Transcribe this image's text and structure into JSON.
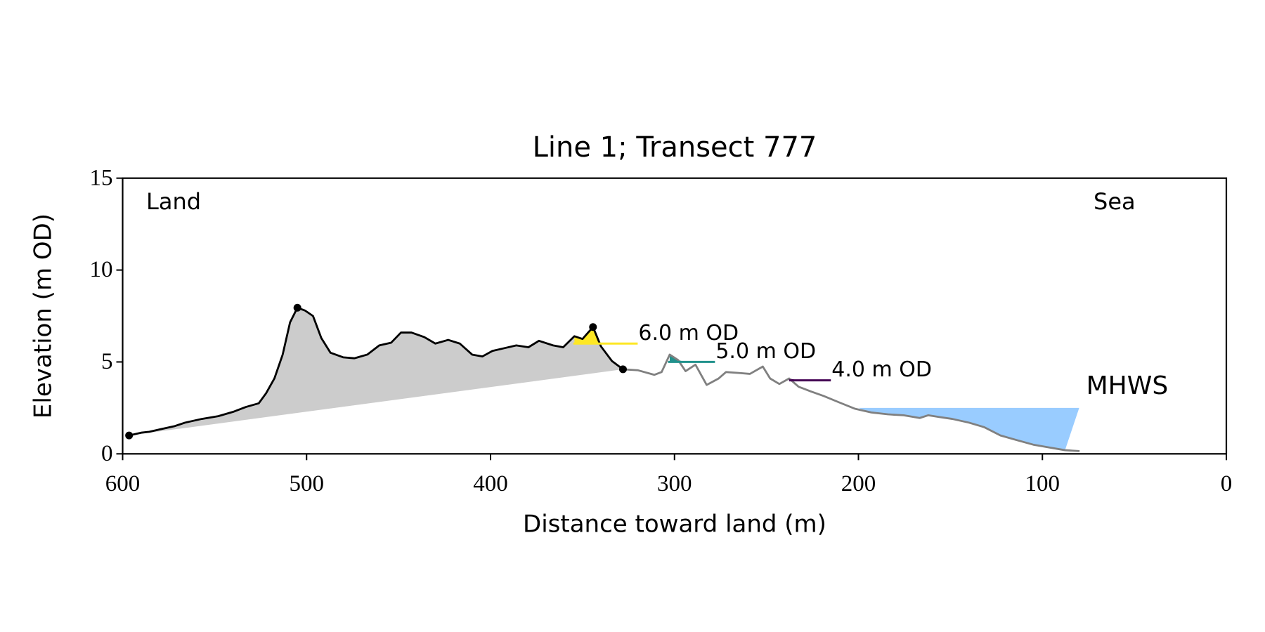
{
  "chart_data": {
    "type": "line",
    "title": "Line 1; Transect 777",
    "x_label": "Distance toward land (m)",
    "y_label": "Elevation (m OD)",
    "annotations": [
      "Land",
      "Sea"
    ],
    "xlim": [
      600,
      0
    ],
    "xticks": [
      600,
      500,
      400,
      300,
      200,
      100,
      0
    ],
    "ylim": [
      0,
      15
    ],
    "yticks": [
      0,
      5,
      10,
      15
    ],
    "series": [
      {
        "color": "#000000",
        "x": [
          596.5,
          590,
          585.5,
          579,
          572,
          566,
          557,
          548,
          539.5,
          533,
          526,
          522,
          517.5,
          513,
          509,
          505,
          500.9,
          496.5,
          492,
          487,
          480,
          474,
          467,
          460.5,
          454,
          448.7,
          443,
          436,
          430,
          423,
          416.7,
          410,
          404.4,
          399,
          392.5,
          386,
          379.4,
          373.7,
          366,
          360.5,
          354.4,
          350,
          344.3,
          340,
          334,
          328
        ],
        "values": [
          1.0,
          1.15,
          1.2,
          1.35,
          1.5,
          1.7,
          1.9,
          2.05,
          2.3,
          2.55,
          2.75,
          3.3,
          4.1,
          5.4,
          7.15,
          7.95,
          7.8,
          7.5,
          6.3,
          5.5,
          5.25,
          5.2,
          5.4,
          5.9,
          6.05,
          6.6,
          6.6,
          6.35,
          6.0,
          6.2,
          6.0,
          5.4,
          5.3,
          5.6,
          5.75,
          5.9,
          5.8,
          6.15,
          5.9,
          5.8,
          6.4,
          6.25,
          6.9,
          5.85,
          5.05,
          4.6
        ]
      },
      {
        "color": "#808080",
        "x": [
          328,
          320,
          311,
          307,
          302.6,
          298,
          294,
          288.6,
          282.5,
          276,
          272,
          265,
          259,
          252,
          248,
          243,
          237.7,
          232.5,
          226,
          219,
          210.5,
          201.8,
          193,
          184,
          175.4,
          166.7,
          162,
          155.7,
          149,
          140,
          131.6,
          122.8,
          114,
          105,
          96.5,
          87.7,
          79.8
        ],
        "values": [
          4.6,
          4.55,
          4.3,
          4.45,
          5.4,
          5.1,
          4.5,
          4.85,
          3.75,
          4.1,
          4.45,
          4.4,
          4.35,
          4.75,
          4.1,
          3.8,
          4.1,
          3.65,
          3.4,
          3.15,
          2.8,
          2.45,
          2.25,
          2.15,
          2.1,
          1.95,
          2.1,
          2.0,
          1.9,
          1.7,
          1.45,
          1.0,
          0.75,
          0.5,
          0.35,
          0.2,
          0.15
        ]
      }
    ],
    "markers": {
      "color": "#000000",
      "x": [
        596.5,
        505,
        344.3,
        328
      ],
      "values": [
        1.0,
        7.95,
        6.9,
        4.6
      ]
    },
    "profile_fill_color": "#cccccc",
    "levels": [
      {
        "label": "6.0 m OD",
        "value": 6.0,
        "x": [
          355,
          320
        ],
        "color": "#fde725"
      },
      {
        "label": "5.0 m OD",
        "value": 5.0,
        "x": [
          303.5,
          278
        ],
        "color": "#21918c"
      },
      {
        "label": "4.0 m OD",
        "value": 4.0,
        "x": [
          237.7,
          215
        ],
        "color": "#440154"
      }
    ],
    "mhws": {
      "label": "MHWS",
      "value": 2.5,
      "x": [
        200,
        80
      ],
      "color": "#99ccff",
      "label_color": "#6699cc"
    }
  }
}
